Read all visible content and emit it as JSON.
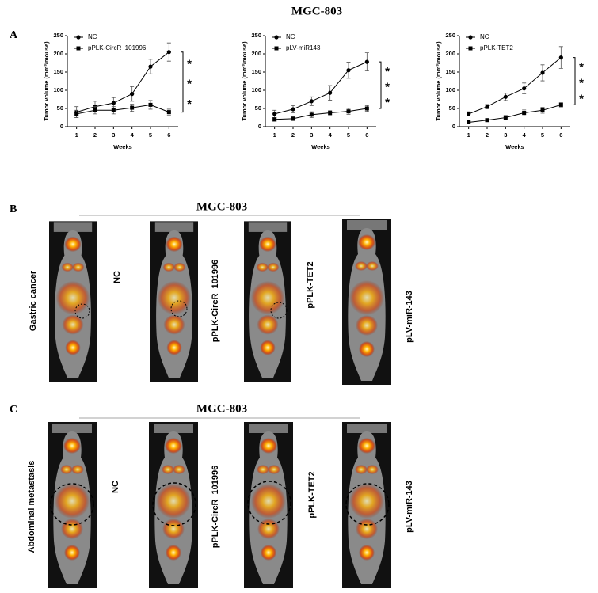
{
  "figure": {
    "title": "MGC-803",
    "panel_labels": [
      "A",
      "B",
      "C"
    ],
    "sections": [
      {
        "title": "MGC-803",
        "row_label": "Gastric cancer",
        "image_labels": [
          "NC",
          "pPLK-CircR_101996",
          "pPLK-TET2",
          "pLV-miR-143"
        ]
      },
      {
        "title": "MGC-803",
        "row_label": "Abdominal metastasis",
        "image_labels": [
          "NC",
          "pPLK-CircR_101996",
          "pPLK-TET2",
          "pLV-miR-143"
        ]
      }
    ]
  },
  "chart_data": [
    {
      "type": "line",
      "xlabel": "Weeks",
      "ylabel": "Tumor volume (mm³/mouse)",
      "x": [
        1,
        2,
        3,
        4,
        5,
        6
      ],
      "xlim": [
        0.5,
        6.5
      ],
      "xticks": [
        1,
        2,
        3,
        4,
        5,
        6
      ],
      "ylim": [
        0,
        250
      ],
      "yticks": [
        0,
        50,
        100,
        150,
        200,
        250
      ],
      "legend": "upper left",
      "annotations": [
        "*",
        "*",
        "*"
      ],
      "series": [
        {
          "name": "NC",
          "color": "#000000",
          "marker": "circle",
          "values": [
            40,
            55,
            65,
            90,
            165,
            205
          ],
          "errors": [
            15,
            15,
            15,
            20,
            20,
            25
          ]
        },
        {
          "name": "pPLK-CircR_101996",
          "color": "#000000",
          "marker": "square",
          "values": [
            35,
            45,
            45,
            52,
            60,
            40
          ],
          "errors": [
            10,
            10,
            10,
            10,
            12,
            8
          ]
        }
      ]
    },
    {
      "type": "line",
      "xlabel": "Weeks",
      "ylabel": "Tumor volume (mm³/mouse)",
      "x": [
        1,
        2,
        3,
        4,
        5,
        6
      ],
      "xlim": [
        0.5,
        6.5
      ],
      "xticks": [
        1,
        2,
        3,
        4,
        5,
        6
      ],
      "ylim": [
        0,
        250
      ],
      "yticks": [
        0,
        50,
        100,
        150,
        200,
        250
      ],
      "legend": "upper left",
      "annotations": [
        "*",
        "*",
        "*"
      ],
      "series": [
        {
          "name": "NC",
          "color": "#000000",
          "marker": "circle",
          "values": [
            35,
            48,
            70,
            93,
            155,
            178
          ],
          "errors": [
            10,
            10,
            12,
            20,
            22,
            25
          ]
        },
        {
          "name": "pLV-miR143",
          "color": "#000000",
          "marker": "square",
          "values": [
            20,
            22,
            33,
            38,
            42,
            50
          ],
          "errors": [
            5,
            5,
            8,
            6,
            8,
            8
          ]
        }
      ]
    },
    {
      "type": "line",
      "xlabel": "Weeks",
      "ylabel": "Tumor volume (mm³/mouse)",
      "x": [
        1,
        2,
        3,
        4,
        5,
        6
      ],
      "xlim": [
        0.5,
        6.5
      ],
      "xticks": [
        1,
        2,
        3,
        4,
        5,
        6
      ],
      "ylim": [
        0,
        250
      ],
      "yticks": [
        0,
        50,
        100,
        150,
        200,
        250
      ],
      "legend": "upper left",
      "annotations": [
        "*",
        "*",
        "*"
      ],
      "series": [
        {
          "name": "NC",
          "color": "#000000",
          "marker": "circle",
          "values": [
            35,
            55,
            82,
            105,
            148,
            190
          ],
          "errors": [
            6,
            6,
            10,
            15,
            22,
            30
          ]
        },
        {
          "name": "pPLK-TET2",
          "color": "#000000",
          "marker": "square",
          "values": [
            12,
            18,
            25,
            38,
            45,
            60
          ],
          "errors": [
            3,
            4,
            6,
            8,
            8,
            6
          ]
        }
      ]
    }
  ]
}
